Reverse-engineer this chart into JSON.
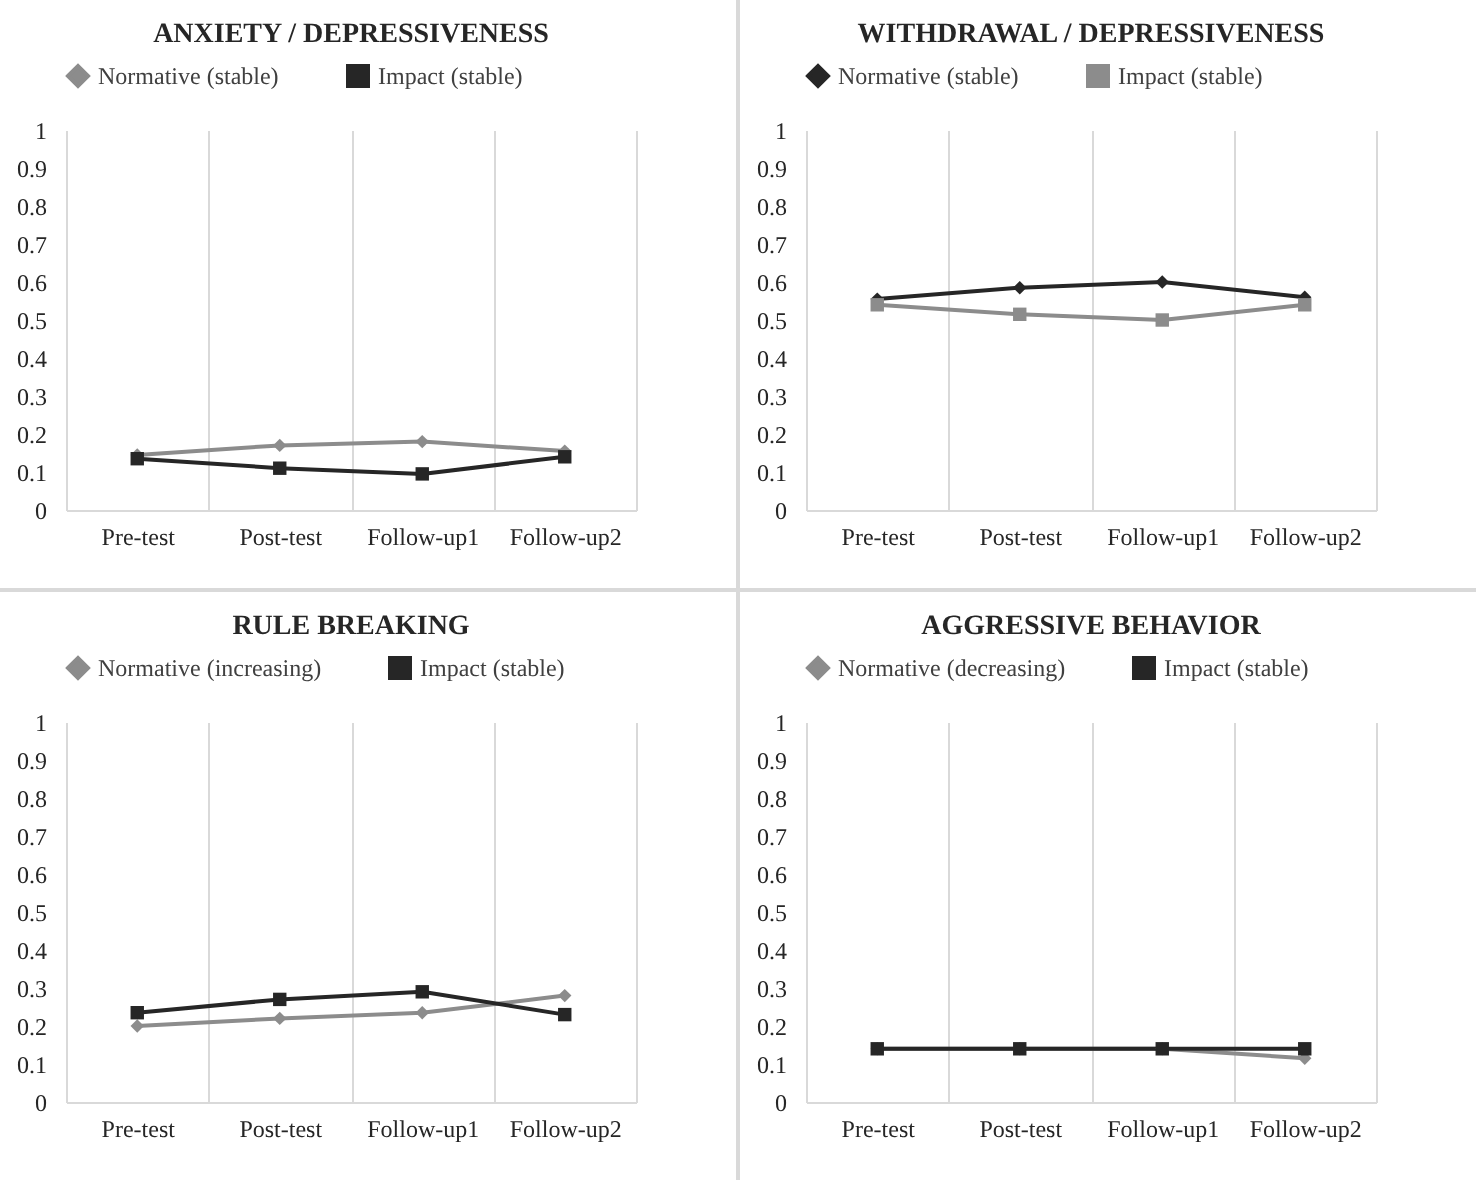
{
  "chart_data": [
    {
      "type": "line",
      "title": "ANXIETY  / DEPRESSIVENESS",
      "categories": [
        "Pre-test",
        "Post-test",
        "Follow-up1",
        "Follow-up2"
      ],
      "ylim": [
        0,
        1
      ],
      "yticks": [
        0,
        0.1,
        0.2,
        0.3,
        0.4,
        0.5,
        0.6,
        0.7,
        0.8,
        0.9,
        1
      ],
      "grid": "x",
      "legend": "top",
      "series": [
        {
          "name": "Normative (stable)",
          "color": "#8c8c8c",
          "marker": "diamond",
          "values": [
            0.145,
            0.17,
            0.18,
            0.155
          ]
        },
        {
          "name": "Impact (stable)",
          "color": "#262626",
          "marker": "square",
          "values": [
            0.135,
            0.11,
            0.095,
            0.14
          ]
        }
      ]
    },
    {
      "type": "line",
      "title": "WITHDRAWAL  / DEPRESSIVENESS",
      "categories": [
        "Pre-test",
        "Post-test",
        "Follow-up1",
        "Follow-up2"
      ],
      "ylim": [
        0,
        1
      ],
      "yticks": [
        0,
        0.1,
        0.2,
        0.3,
        0.4,
        0.5,
        0.6,
        0.7,
        0.8,
        0.9,
        1
      ],
      "grid": "x",
      "legend": "top",
      "series": [
        {
          "name": "Normative (stable)",
          "color": "#262626",
          "marker": "diamond",
          "values": [
            0.555,
            0.585,
            0.6,
            0.56
          ]
        },
        {
          "name": "Impact (stable)",
          "color": "#8c8c8c",
          "marker": "square",
          "values": [
            0.54,
            0.515,
            0.5,
            0.54
          ]
        }
      ]
    },
    {
      "type": "line",
      "title": "RULE  BREAKING",
      "categories": [
        "Pre-test",
        "Post-test",
        "Follow-up1",
        "Follow-up2"
      ],
      "ylim": [
        0,
        1
      ],
      "yticks": [
        0,
        0.1,
        0.2,
        0.3,
        0.4,
        0.5,
        0.6,
        0.7,
        0.8,
        0.9,
        1
      ],
      "grid": "x",
      "legend": "top",
      "series": [
        {
          "name": "Normative (increasing)",
          "color": "#8c8c8c",
          "marker": "diamond",
          "values": [
            0.2,
            0.22,
            0.235,
            0.28
          ]
        },
        {
          "name": "Impact (stable)",
          "color": "#262626",
          "marker": "square",
          "values": [
            0.235,
            0.27,
            0.29,
            0.23
          ]
        }
      ]
    },
    {
      "type": "line",
      "title": "AGGRESSIVE  BEHAVIOR",
      "categories": [
        "Pre-test",
        "Post-test",
        "Follow-up1",
        "Follow-up2"
      ],
      "ylim": [
        0,
        1
      ],
      "yticks": [
        0,
        0.1,
        0.2,
        0.3,
        0.4,
        0.5,
        0.6,
        0.7,
        0.8,
        0.9,
        1
      ],
      "grid": "x",
      "legend": "top",
      "series": [
        {
          "name": "Normative (decreasing)",
          "color": "#8c8c8c",
          "marker": "diamond",
          "values": [
            0.14,
            0.14,
            0.14,
            0.115
          ]
        },
        {
          "name": "Impact (stable)",
          "color": "#262626",
          "marker": "square",
          "values": [
            0.14,
            0.14,
            0.14,
            0.14
          ]
        }
      ]
    }
  ]
}
